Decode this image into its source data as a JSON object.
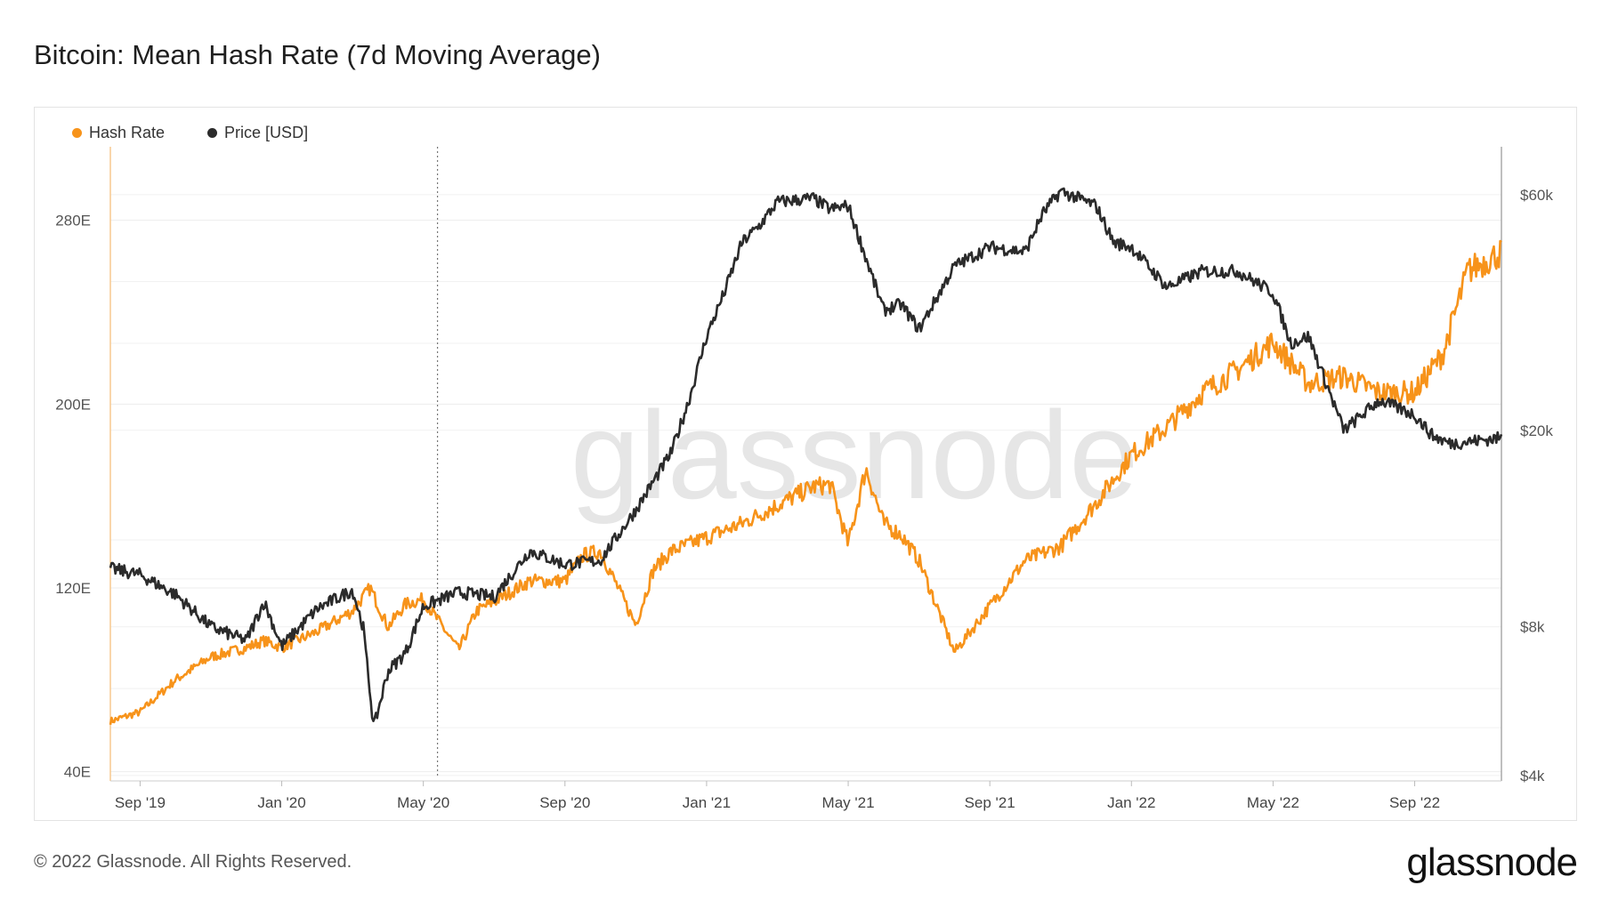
{
  "title": "Bitcoin: Mean Hash Rate (7d Moving Average)",
  "watermark": "glassnode",
  "footer": {
    "copyright": "© 2022 Glassnode. All Rights Reserved.",
    "brand": "glassnode"
  },
  "legend": [
    {
      "label": "Hash Rate",
      "color": "#f7931a"
    },
    {
      "label": "Price [USD]",
      "color": "#2b2b2b"
    }
  ],
  "chart_data": {
    "type": "line",
    "title": "Bitcoin: Mean Hash Rate (7d Moving Average)",
    "x_ticks": [
      "Sep '19",
      "Jan '20",
      "May '20",
      "Sep '20",
      "Jan '21",
      "May '21",
      "Sep '21",
      "Jan '22",
      "May '22",
      "Sep '22"
    ],
    "x_tick_months": [
      2,
      6,
      10,
      14,
      18,
      22,
      26,
      30,
      34,
      38
    ],
    "x_range": [
      1.16,
      40.45
    ],
    "left_axis": {
      "label": "Hash Rate",
      "ticks": [
        40,
        120,
        200,
        280
      ],
      "tick_labels": [
        "40E",
        "120E",
        "200E",
        "280E"
      ],
      "range": [
        36,
        312
      ]
    },
    "right_axis": {
      "label": "Price [USD]",
      "scale": "log",
      "ticks": [
        4000,
        8000,
        20000,
        60000
      ],
      "tick_labels": [
        "$4k",
        "$8k",
        "$20k",
        "$60k"
      ],
      "range": [
        3900,
        75000
      ]
    },
    "marker_month": 10.4,
    "series": [
      {
        "name": "Hash Rate",
        "axis": "left",
        "color": "#f7931a",
        "x": [
          1.16,
          2,
          3,
          4,
          5,
          5.5,
          6,
          7,
          8,
          8.5,
          9,
          9.5,
          10,
          10.5,
          11,
          11.5,
          12,
          13,
          14,
          14.5,
          15,
          16,
          16.5,
          17,
          18,
          19,
          20,
          21,
          21.5,
          22,
          22.5,
          23,
          23.5,
          24,
          25,
          26,
          27,
          28,
          29,
          30,
          31,
          32,
          33,
          34,
          35,
          36,
          37,
          38,
          38.8,
          39.5,
          40.45
        ],
        "y": [
          62,
          66,
          80,
          90,
          94,
          97,
          94,
          101,
          110,
          120,
          103,
          113,
          115,
          104,
          93,
          110,
          114,
          123,
          123,
          134,
          136,
          104,
          128,
          136,
          142,
          148,
          156,
          164,
          165,
          139,
          172,
          148,
          143,
          132,
          92,
          112,
          132,
          138,
          157,
          178,
          190,
          205,
          215,
          227,
          209,
          212,
          205,
          205,
          222,
          258,
          266
        ]
      },
      {
        "name": "Price [USD]",
        "axis": "right",
        "color": "#2b2b2b",
        "x": [
          1.16,
          2,
          3,
          4,
          5,
          5.5,
          6,
          7,
          8,
          8.3,
          8.6,
          9,
          9.5,
          10,
          11,
          12,
          13,
          14,
          15,
          16,
          17,
          17.5,
          18,
          18.5,
          19,
          19.5,
          20,
          21,
          21.5,
          22,
          23,
          23.5,
          24,
          25,
          26,
          27,
          27.5,
          28,
          29,
          29.5,
          30,
          31,
          32,
          33,
          34,
          34.5,
          35,
          36,
          37,
          38,
          38.5,
          39,
          40.45
        ],
        "y": [
          10500,
          10200,
          9300,
          8000,
          7500,
          9000,
          7300,
          8700,
          9500,
          8000,
          5000,
          6500,
          7100,
          8800,
          9400,
          9200,
          11400,
          10700,
          10900,
          13800,
          18000,
          23000,
          31000,
          38000,
          48000,
          52000,
          58000,
          59000,
          56000,
          57000,
          35000,
          36000,
          32000,
          43000,
          47000,
          46000,
          55000,
          61000,
          57000,
          48000,
          47000,
          39000,
          42000,
          42000,
          38000,
          30000,
          31000,
          20000,
          23000,
          21500,
          19500,
          18800,
          19300
        ]
      }
    ]
  }
}
